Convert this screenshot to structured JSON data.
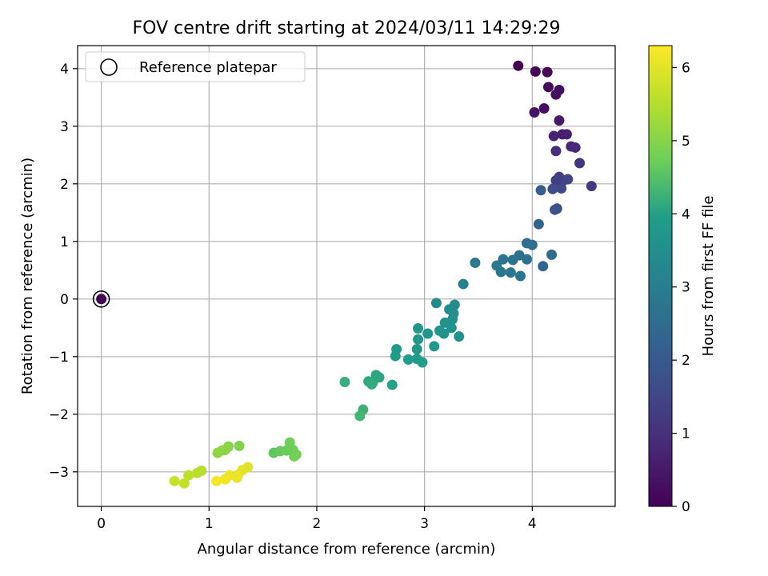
{
  "chart_data": {
    "type": "scatter",
    "title": "FOV centre drift starting at 2024/03/11 14:29:29",
    "xlabel": "Angular distance from reference (arcmin)",
    "ylabel": "Rotation from reference (arcmin)",
    "xlim": [
      -0.22,
      4.77
    ],
    "ylim": [
      -3.6,
      4.4
    ],
    "xticks": [
      0,
      1,
      2,
      3,
      4
    ],
    "yticks": [
      -3,
      -2,
      -1,
      0,
      1,
      2,
      3,
      4
    ],
    "tick_labels": {
      "x": [
        "0",
        "1",
        "2",
        "3",
        "4"
      ],
      "y": [
        "−3",
        "−2",
        "−1",
        "0",
        "1",
        "2",
        "3",
        "4"
      ]
    },
    "grid": true,
    "legend": {
      "position": "top-left",
      "entries": [
        "Reference platepar"
      ]
    },
    "colormap": "viridis",
    "colorbar": {
      "label": "Hours from first FF file",
      "range": [
        0,
        6.3
      ],
      "ticks": [
        0,
        1,
        2,
        3,
        4,
        5,
        6
      ],
      "tick_labels": [
        "0",
        "1",
        "2",
        "3",
        "4",
        "5",
        "6"
      ]
    },
    "reference_point": {
      "x": 0,
      "y": 0,
      "t": 0
    },
    "series": [
      {
        "points": [
          [
            3.87,
            4.05,
            0.0
          ],
          [
            4.03,
            3.95,
            0.08
          ],
          [
            4.14,
            3.94,
            0.15
          ],
          [
            4.15,
            3.68,
            0.2
          ],
          [
            4.25,
            3.63,
            0.25
          ],
          [
            4.22,
            3.55,
            0.28
          ],
          [
            4.11,
            3.31,
            0.32
          ],
          [
            4.02,
            3.24,
            0.38
          ],
          [
            4.25,
            3.1,
            0.5
          ],
          [
            4.28,
            2.86,
            0.6
          ],
          [
            4.32,
            2.86,
            0.65
          ],
          [
            4.2,
            2.83,
            0.7
          ],
          [
            4.36,
            2.65,
            0.8
          ],
          [
            4.4,
            2.63,
            0.85
          ],
          [
            4.22,
            2.57,
            0.95
          ],
          [
            4.44,
            2.36,
            1.1
          ],
          [
            4.22,
            2.06,
            1.3
          ],
          [
            4.25,
            2.12,
            1.35
          ],
          [
            4.29,
            2.06,
            1.4
          ],
          [
            4.33,
            2.08,
            1.45
          ],
          [
            4.27,
            1.92,
            1.5
          ],
          [
            4.19,
            1.91,
            1.6
          ],
          [
            4.55,
            1.96,
            1.2
          ],
          [
            4.23,
            1.57,
            1.7
          ],
          [
            4.21,
            1.55,
            1.75
          ],
          [
            4.08,
            1.89,
            2.1
          ],
          [
            4.06,
            1.3,
            2.3
          ],
          [
            3.95,
            0.97,
            2.5
          ],
          [
            4.0,
            0.94,
            2.55
          ],
          [
            4.18,
            0.77,
            2.45
          ],
          [
            3.88,
            0.76,
            2.6
          ],
          [
            3.95,
            0.69,
            2.65
          ],
          [
            3.73,
            0.69,
            2.75
          ],
          [
            3.82,
            0.68,
            2.7
          ],
          [
            3.67,
            0.58,
            2.8
          ],
          [
            4.1,
            0.57,
            2.35
          ],
          [
            3.71,
            0.47,
            2.85
          ],
          [
            3.8,
            0.46,
            2.82
          ],
          [
            3.89,
            0.4,
            2.78
          ],
          [
            3.47,
            0.63,
            2.9
          ],
          [
            3.36,
            0.26,
            3.05
          ],
          [
            3.11,
            -0.07,
            3.4
          ],
          [
            3.28,
            -0.1,
            3.35
          ],
          [
            3.23,
            -0.18,
            3.45
          ],
          [
            3.27,
            -0.25,
            3.5
          ],
          [
            3.26,
            -0.35,
            3.55
          ],
          [
            3.19,
            -0.41,
            3.6
          ],
          [
            3.25,
            -0.5,
            3.62
          ],
          [
            3.14,
            -0.55,
            3.65
          ],
          [
            3.18,
            -0.6,
            3.68
          ],
          [
            3.03,
            -0.6,
            3.7
          ],
          [
            2.94,
            -0.51,
            3.72
          ],
          [
            3.32,
            -0.65,
            3.58
          ],
          [
            2.94,
            -0.7,
            3.75
          ],
          [
            3.09,
            -0.82,
            3.78
          ],
          [
            2.93,
            -0.87,
            3.8
          ],
          [
            2.74,
            -0.87,
            3.85
          ],
          [
            2.73,
            -0.99,
            3.88
          ],
          [
            2.85,
            -1.05,
            3.9
          ],
          [
            2.93,
            -1.04,
            3.92
          ],
          [
            2.98,
            -1.1,
            3.95
          ],
          [
            2.55,
            -1.32,
            4.05
          ],
          [
            2.48,
            -1.43,
            4.1
          ],
          [
            2.52,
            -1.45,
            4.12
          ],
          [
            2.58,
            -1.36,
            4.08
          ],
          [
            2.51,
            -1.48,
            4.15
          ],
          [
            2.7,
            -1.49,
            4.0
          ],
          [
            2.26,
            -1.44,
            4.2
          ],
          [
            2.43,
            -1.92,
            4.25
          ],
          [
            2.4,
            -2.03,
            4.3
          ],
          [
            1.6,
            -2.67,
            4.6
          ],
          [
            1.66,
            -2.64,
            4.65
          ],
          [
            1.72,
            -2.63,
            4.7
          ],
          [
            1.75,
            -2.49,
            4.75
          ],
          [
            1.78,
            -2.62,
            4.72
          ],
          [
            1.81,
            -2.7,
            4.78
          ],
          [
            1.79,
            -2.73,
            4.8
          ],
          [
            1.28,
            -2.55,
            4.95
          ],
          [
            1.18,
            -2.56,
            5.0
          ],
          [
            1.15,
            -2.62,
            5.05
          ],
          [
            1.12,
            -2.63,
            5.08
          ],
          [
            1.08,
            -2.67,
            5.1
          ],
          [
            0.93,
            -2.98,
            5.5
          ],
          [
            0.89,
            -3.02,
            5.55
          ],
          [
            0.81,
            -3.06,
            5.6
          ],
          [
            0.77,
            -3.2,
            5.65
          ],
          [
            0.68,
            -3.16,
            5.7
          ],
          [
            1.36,
            -2.92,
            5.95
          ],
          [
            1.31,
            -2.97,
            6.0
          ],
          [
            1.27,
            -3.05,
            6.05
          ],
          [
            1.19,
            -3.06,
            6.08
          ],
          [
            1.26,
            -3.1,
            6.1
          ],
          [
            1.15,
            -3.13,
            6.15
          ],
          [
            1.07,
            -3.16,
            6.2
          ]
        ]
      }
    ]
  },
  "legend": {
    "label": "Reference platepar"
  },
  "colors": {
    "grid": "#b0b0b0",
    "marker_edge": "#000000",
    "viridis": [
      "#440154",
      "#482777",
      "#3f4a8a",
      "#31678e",
      "#26838f",
      "#1f9d8a",
      "#6cce5a",
      "#b6de2b",
      "#fee825"
    ]
  }
}
